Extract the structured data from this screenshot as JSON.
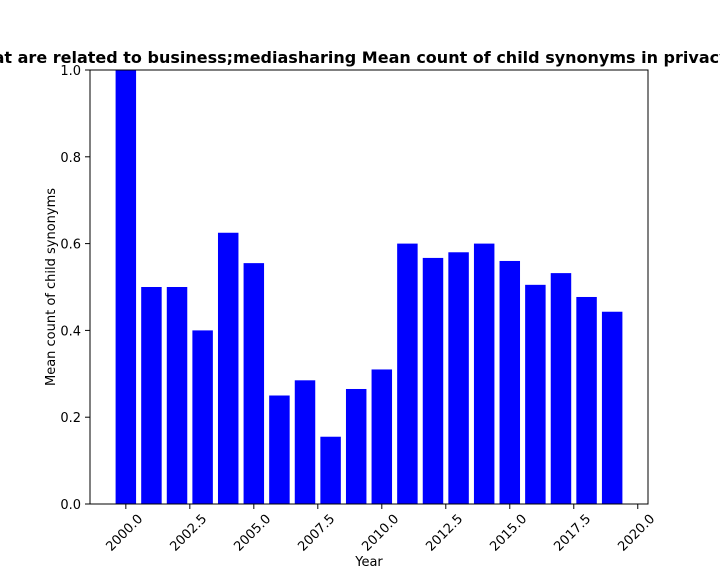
{
  "chart_data": {
    "type": "bar",
    "title": "Mean count of child synonyms in privacy policies that are related to business;mediasharing Mean count of child synonyms in privacy policies that are related to business;mediasharing",
    "xlabel": "Year",
    "ylabel": "Mean count of child synonyms",
    "x": [
      2000,
      2001,
      2002,
      2003,
      2004,
      2005,
      2006,
      2007,
      2008,
      2009,
      2010,
      2011,
      2012,
      2013,
      2014,
      2015,
      2016,
      2017,
      2018,
      2019
    ],
    "values": [
      1.0,
      0.5,
      0.5,
      0.4,
      0.625,
      0.555,
      0.25,
      0.285,
      0.155,
      0.265,
      0.31,
      0.6,
      0.567,
      0.58,
      0.6,
      0.56,
      0.505,
      0.532,
      0.477,
      0.443
    ],
    "xlim": [
      1998.6,
      2020.4
    ],
    "ylim": [
      0,
      1.0
    ],
    "xticks": [
      "2000.0",
      "2002.5",
      "2005.0",
      "2007.5",
      "2010.0",
      "2012.5",
      "2015.0",
      "2017.5",
      "2020.0"
    ],
    "yticks": [
      "0.0",
      "0.2",
      "0.4",
      "0.6",
      "0.8",
      "1.0"
    ],
    "bar_color": "#0000ff",
    "grid": false,
    "legend": "none"
  }
}
